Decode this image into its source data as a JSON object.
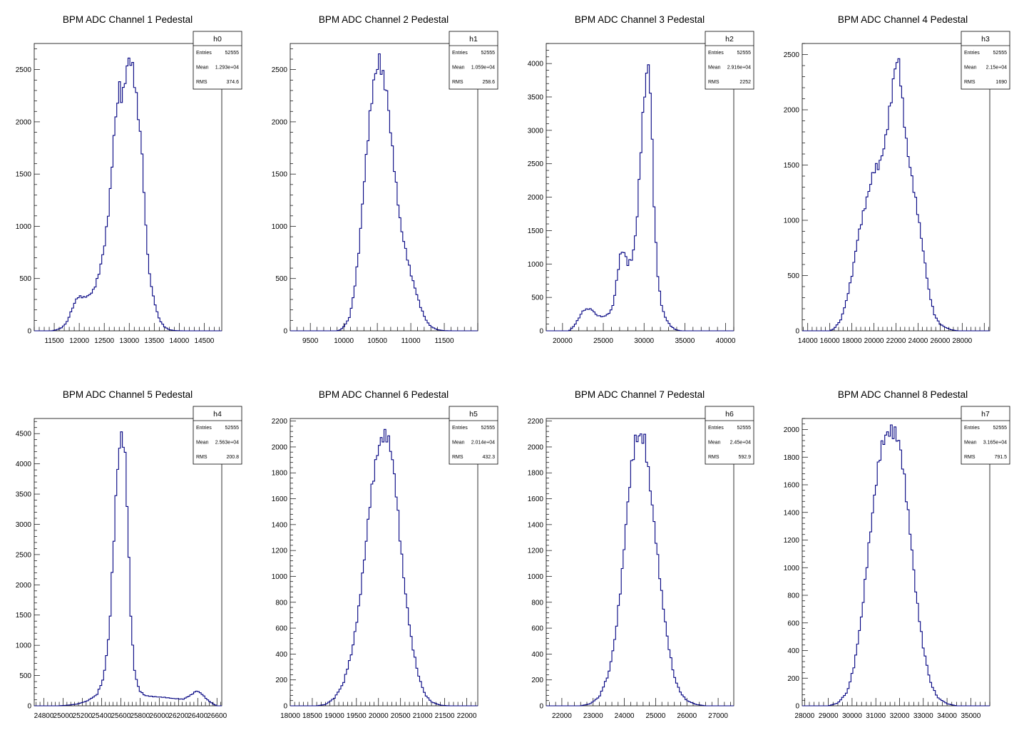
{
  "line_color": "#000080",
  "axis_color": "#000000",
  "chart_data": [
    {
      "type": "histogram",
      "title": "BPM ADC Channel 1 Pedestal",
      "xlim": [
        11100,
        14850
      ],
      "ylim": [
        0,
        2750
      ],
      "xticks": [
        11500,
        12000,
        12500,
        13000,
        13500,
        14000,
        14500
      ],
      "yticks": [
        0,
        500,
        1000,
        1500,
        2000,
        2500
      ],
      "stats": {
        "name": "h0",
        "entries": "52555",
        "mean": "1.293e+04",
        "rms": "374.6"
      },
      "shape": [
        [
          11100,
          0
        ],
        [
          11450,
          0
        ],
        [
          11550,
          10
        ],
        [
          11650,
          30
        ],
        [
          11750,
          80
        ],
        [
          11850,
          200
        ],
        [
          11950,
          310
        ],
        [
          12000,
          330
        ],
        [
          12100,
          320
        ],
        [
          12200,
          340
        ],
        [
          12300,
          400
        ],
        [
          12400,
          560
        ],
        [
          12500,
          800
        ],
        [
          12600,
          1200
        ],
        [
          12700,
          1900
        ],
        [
          12800,
          2350
        ],
        [
          12860,
          2200
        ],
        [
          12930,
          2450
        ],
        [
          13000,
          2620
        ],
        [
          13080,
          2500
        ],
        [
          13150,
          2200
        ],
        [
          13250,
          1750
        ],
        [
          13330,
          1000
        ],
        [
          13400,
          550
        ],
        [
          13500,
          280
        ],
        [
          13600,
          110
        ],
        [
          13700,
          40
        ],
        [
          13800,
          10
        ],
        [
          13900,
          3
        ],
        [
          14050,
          0
        ],
        [
          14850,
          0
        ]
      ]
    },
    {
      "type": "histogram",
      "title": "BPM ADC Channel 2 Pedestal",
      "xlim": [
        9200,
        12000
      ],
      "ylim": [
        0,
        2750
      ],
      "xticks": [
        9500,
        10000,
        10500,
        11000,
        11500
      ],
      "yticks": [
        0,
        500,
        1000,
        1500,
        2000,
        2500
      ],
      "stats": {
        "name": "h1",
        "entries": "52555",
        "mean": "1.059e+04",
        "rms": "258.6"
      },
      "shape": [
        [
          9200,
          0
        ],
        [
          9900,
          0
        ],
        [
          9950,
          10
        ],
        [
          10000,
          40
        ],
        [
          10080,
          120
        ],
        [
          10150,
          350
        ],
        [
          10230,
          800
        ],
        [
          10300,
          1400
        ],
        [
          10380,
          2000
        ],
        [
          10450,
          2400
        ],
        [
          10530,
          2600
        ],
        [
          10580,
          2450
        ],
        [
          10650,
          2250
        ],
        [
          10700,
          1900
        ],
        [
          10780,
          1400
        ],
        [
          10850,
          1000
        ],
        [
          10930,
          750
        ],
        [
          11000,
          550
        ],
        [
          11080,
          370
        ],
        [
          11150,
          220
        ],
        [
          11230,
          100
        ],
        [
          11300,
          40
        ],
        [
          11400,
          10
        ],
        [
          11500,
          2
        ],
        [
          11600,
          0
        ],
        [
          12000,
          0
        ]
      ]
    },
    {
      "type": "histogram",
      "title": "BPM ADC Channel 3 Pedestal",
      "xlim": [
        18000,
        41000
      ],
      "ylim": [
        0,
        4300
      ],
      "xticks": [
        20000,
        25000,
        30000,
        35000,
        40000
      ],
      "yticks": [
        0,
        500,
        1000,
        1500,
        2000,
        2500,
        3000,
        3500,
        4000
      ],
      "stats": {
        "name": "h2",
        "entries": "52555",
        "mean": "2.916e+04",
        "rms": "2252"
      },
      "shape": [
        [
          18000,
          0
        ],
        [
          20800,
          0
        ],
        [
          21400,
          70
        ],
        [
          22000,
          190
        ],
        [
          22500,
          300
        ],
        [
          23100,
          330
        ],
        [
          23600,
          320
        ],
        [
          24200,
          230
        ],
        [
          25000,
          210
        ],
        [
          25700,
          260
        ],
        [
          26200,
          380
        ],
        [
          26700,
          800
        ],
        [
          27100,
          1150
        ],
        [
          27500,
          1200
        ],
        [
          28000,
          1000
        ],
        [
          28600,
          1100
        ],
        [
          29100,
          1600
        ],
        [
          29600,
          2700
        ],
        [
          30000,
          3500
        ],
        [
          30300,
          3800
        ],
        [
          30600,
          4050
        ],
        [
          30900,
          3200
        ],
        [
          31300,
          1600
        ],
        [
          31700,
          800
        ],
        [
          32100,
          400
        ],
        [
          32600,
          200
        ],
        [
          33200,
          80
        ],
        [
          33800,
          20
        ],
        [
          34500,
          0
        ],
        [
          41000,
          0
        ]
      ]
    },
    {
      "type": "histogram",
      "title": "BPM ADC Channel 4 Pedestal",
      "xlim": [
        13500,
        30500
      ],
      "ylim": [
        0,
        2600
      ],
      "xticks": [
        14000,
        16000,
        18000,
        20000,
        22000,
        24000,
        26000,
        28000
      ],
      "yticks": [
        0,
        500,
        1000,
        1500,
        2000,
        2500
      ],
      "stats": {
        "name": "h3",
        "entries": "52555",
        "mean": "2.15e+04",
        "rms": "1690"
      },
      "shape": [
        [
          13500,
          0
        ],
        [
          16000,
          0
        ],
        [
          16400,
          20
        ],
        [
          17000,
          100
        ],
        [
          17500,
          270
        ],
        [
          18000,
          500
        ],
        [
          18500,
          820
        ],
        [
          19000,
          1050
        ],
        [
          19500,
          1250
        ],
        [
          20000,
          1460
        ],
        [
          20500,
          1500
        ],
        [
          21000,
          1700
        ],
        [
          21500,
          2050
        ],
        [
          22000,
          2450
        ],
        [
          22300,
          2420
        ],
        [
          22600,
          2050
        ],
        [
          23000,
          1650
        ],
        [
          23500,
          1350
        ],
        [
          24000,
          1050
        ],
        [
          24500,
          700
        ],
        [
          25000,
          350
        ],
        [
          25500,
          140
        ],
        [
          26000,
          60
        ],
        [
          26500,
          30
        ],
        [
          27000,
          10
        ],
        [
          27600,
          0
        ],
        [
          30500,
          0
        ]
      ]
    },
    {
      "type": "histogram",
      "title": "BPM ADC Channel 5 Pedestal",
      "xlim": [
        24700,
        26650
      ],
      "ylim": [
        0,
        4750
      ],
      "xticks": [
        24800,
        25000,
        25200,
        25400,
        25600,
        25800,
        26000,
        26200,
        26400,
        26600
      ],
      "yticks": [
        0,
        500,
        1000,
        1500,
        2000,
        2500,
        3000,
        3500,
        4000,
        4500
      ],
      "stats": {
        "name": "h4",
        "entries": "52555",
        "mean": "2.563e+04",
        "rms": "200.8"
      },
      "shape": [
        [
          24700,
          0
        ],
        [
          24950,
          0
        ],
        [
          25050,
          10
        ],
        [
          25150,
          30
        ],
        [
          25250,
          80
        ],
        [
          25350,
          180
        ],
        [
          25420,
          450
        ],
        [
          25480,
          1200
        ],
        [
          25520,
          2500
        ],
        [
          25560,
          3800
        ],
        [
          25600,
          4500
        ],
        [
          25640,
          4300
        ],
        [
          25670,
          3200
        ],
        [
          25700,
          1600
        ],
        [
          25740,
          600
        ],
        [
          25790,
          260
        ],
        [
          25850,
          170
        ],
        [
          25950,
          150
        ],
        [
          26050,
          140
        ],
        [
          26150,
          120
        ],
        [
          26250,
          110
        ],
        [
          26330,
          180
        ],
        [
          26390,
          250
        ],
        [
          26440,
          200
        ],
        [
          26500,
          100
        ],
        [
          26560,
          30
        ],
        [
          26600,
          0
        ],
        [
          26650,
          0
        ]
      ]
    },
    {
      "type": "histogram",
      "title": "BPM ADC Channel 6 Pedestal",
      "xlim": [
        18000,
        22250
      ],
      "ylim": [
        0,
        2220
      ],
      "xticks": [
        18000,
        18500,
        19000,
        19500,
        20000,
        20500,
        21000,
        21500,
        22000
      ],
      "yticks": [
        0,
        200,
        400,
        600,
        800,
        1000,
        1200,
        1400,
        1600,
        1800,
        2000,
        2200
      ],
      "stats": {
        "name": "h5",
        "entries": "52555",
        "mean": "2.014e+04",
        "rms": "432.3"
      },
      "shape": [
        [
          18000,
          0
        ],
        [
          18600,
          0
        ],
        [
          18800,
          10
        ],
        [
          19000,
          60
        ],
        [
          19200,
          170
        ],
        [
          19400,
          420
        ],
        [
          19550,
          750
        ],
        [
          19700,
          1200
        ],
        [
          19800,
          1550
        ],
        [
          19900,
          1800
        ],
        [
          20000,
          2000
        ],
        [
          20100,
          2080
        ],
        [
          20200,
          2090
        ],
        [
          20300,
          1950
        ],
        [
          20400,
          1650
        ],
        [
          20500,
          1250
        ],
        [
          20600,
          900
        ],
        [
          20750,
          500
        ],
        [
          20900,
          240
        ],
        [
          21050,
          90
        ],
        [
          21200,
          30
        ],
        [
          21400,
          5
        ],
        [
          21600,
          0
        ],
        [
          22250,
          0
        ]
      ]
    },
    {
      "type": "histogram",
      "title": "BPM ADC Channel 7 Pedestal",
      "xlim": [
        21500,
        27500
      ],
      "ylim": [
        0,
        2220
      ],
      "xticks": [
        22000,
        23000,
        24000,
        25000,
        26000,
        27000
      ],
      "yticks": [
        0,
        200,
        400,
        600,
        800,
        1000,
        1200,
        1400,
        1600,
        1800,
        2000,
        2200
      ],
      "stats": {
        "name": "h6",
        "entries": "52555",
        "mean": "2.45e+04",
        "rms": "592.9"
      },
      "shape": [
        [
          21500,
          0
        ],
        [
          22600,
          0
        ],
        [
          22900,
          15
        ],
        [
          23200,
          70
        ],
        [
          23500,
          250
        ],
        [
          23700,
          520
        ],
        [
          23900,
          950
        ],
        [
          24050,
          1400
        ],
        [
          24200,
          1800
        ],
        [
          24350,
          2050
        ],
        [
          24500,
          2090
        ],
        [
          24650,
          2050
        ],
        [
          24800,
          1750
        ],
        [
          25000,
          1300
        ],
        [
          25200,
          850
        ],
        [
          25400,
          480
        ],
        [
          25600,
          220
        ],
        [
          25800,
          100
        ],
        [
          26000,
          40
        ],
        [
          26300,
          10
        ],
        [
          26600,
          0
        ],
        [
          27500,
          0
        ]
      ]
    },
    {
      "type": "histogram",
      "title": "BPM ADC Channel 8 Pedestal",
      "xlim": [
        27900,
        35800
      ],
      "ylim": [
        0,
        2080
      ],
      "xticks": [
        28000,
        29000,
        30000,
        31000,
        32000,
        33000,
        34000,
        35000
      ],
      "yticks": [
        0,
        200,
        400,
        600,
        800,
        1000,
        1200,
        1400,
        1600,
        1800,
        2000
      ],
      "stats": {
        "name": "h7",
        "entries": "52555",
        "mean": "3.165e+04",
        "rms": "791.5"
      },
      "shape": [
        [
          27900,
          0
        ],
        [
          29000,
          0
        ],
        [
          29400,
          20
        ],
        [
          29800,
          100
        ],
        [
          30100,
          300
        ],
        [
          30400,
          650
        ],
        [
          30700,
          1150
        ],
        [
          31000,
          1600
        ],
        [
          31200,
          1850
        ],
        [
          31400,
          1950
        ],
        [
          31600,
          1990
        ],
        [
          31800,
          1980
        ],
        [
          32000,
          1900
        ],
        [
          32200,
          1650
        ],
        [
          32450,
          1250
        ],
        [
          32700,
          800
        ],
        [
          33000,
          420
        ],
        [
          33300,
          170
        ],
        [
          33600,
          60
        ],
        [
          34000,
          15
        ],
        [
          34400,
          0
        ],
        [
          35800,
          0
        ]
      ]
    }
  ]
}
